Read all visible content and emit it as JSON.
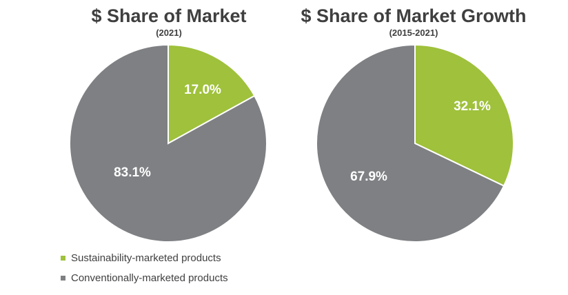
{
  "colors": {
    "sustainable": "#9fc13b",
    "conventional": "#7e8083",
    "label": "#ffffff",
    "title": "#3f3f3f"
  },
  "chart_data": [
    {
      "type": "pie",
      "title": "$ Share of Market",
      "subtitle": "(2021)",
      "slices": [
        {
          "label": "Sustainability-marketed products",
          "value": 17.0,
          "display": "17.0%"
        },
        {
          "label": "Conventionally-marketed products",
          "value": 83.1,
          "display": "83.1%"
        }
      ]
    },
    {
      "type": "pie",
      "title": "$ Share of Market Growth",
      "subtitle": "(2015-2021)",
      "slices": [
        {
          "label": "Sustainability-marketed products",
          "value": 32.1,
          "display": "32.1%"
        },
        {
          "label": "Conventionally-marketed products",
          "value": 67.9,
          "display": "67.9%"
        }
      ]
    }
  ],
  "legend": [
    {
      "label": "Sustainability-marketed products",
      "color": "#9fc13b"
    },
    {
      "label": "Conventionally-marketed products",
      "color": "#7e8083"
    }
  ]
}
